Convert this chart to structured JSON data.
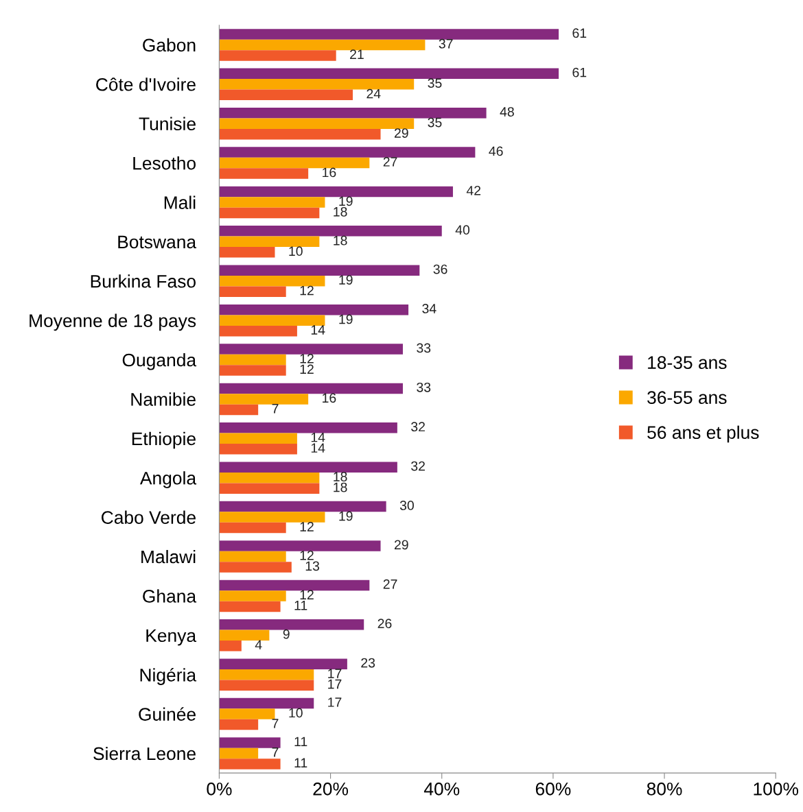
{
  "chart_data": {
    "type": "bar",
    "orientation": "horizontal",
    "categories": [
      "Gabon",
      "Côte d'Ivoire",
      "Tunisie",
      "Lesotho",
      "Mali",
      "Botswana",
      "Burkina Faso",
      "Moyenne de 18 pays",
      "Ouganda",
      "Namibie",
      "Ethiopie",
      "Angola",
      "Cabo Verde",
      "Malawi",
      "Ghana",
      "Kenya",
      "Nigéria",
      "Guinée",
      "Sierra Leone"
    ],
    "series": [
      {
        "name": "18-35 ans",
        "color": "#862a7e",
        "values": [
          61,
          61,
          48,
          46,
          42,
          40,
          36,
          34,
          33,
          33,
          32,
          32,
          30,
          29,
          27,
          26,
          23,
          17,
          11
        ]
      },
      {
        "name": "36-55 ans",
        "color": "#fba800",
        "values": [
          37,
          35,
          35,
          27,
          19,
          18,
          19,
          19,
          12,
          16,
          14,
          18,
          19,
          12,
          12,
          9,
          17,
          10,
          7
        ]
      },
      {
        "name": "56 ans et plus",
        "color": "#f1592a",
        "values": [
          21,
          24,
          29,
          16,
          18,
          10,
          12,
          14,
          12,
          7,
          14,
          18,
          12,
          13,
          11,
          4,
          17,
          7,
          11
        ]
      }
    ],
    "xlim": [
      0,
      100
    ],
    "xticks": [
      {
        "value": 0,
        "label": "0%"
      },
      {
        "value": 20,
        "label": "20%"
      },
      {
        "value": 40,
        "label": "40%"
      },
      {
        "value": 60,
        "label": "60%"
      },
      {
        "value": 80,
        "label": "80%"
      },
      {
        "value": 100,
        "label": "100%"
      }
    ],
    "data_labels": true,
    "legend": "right",
    "grid": false
  }
}
